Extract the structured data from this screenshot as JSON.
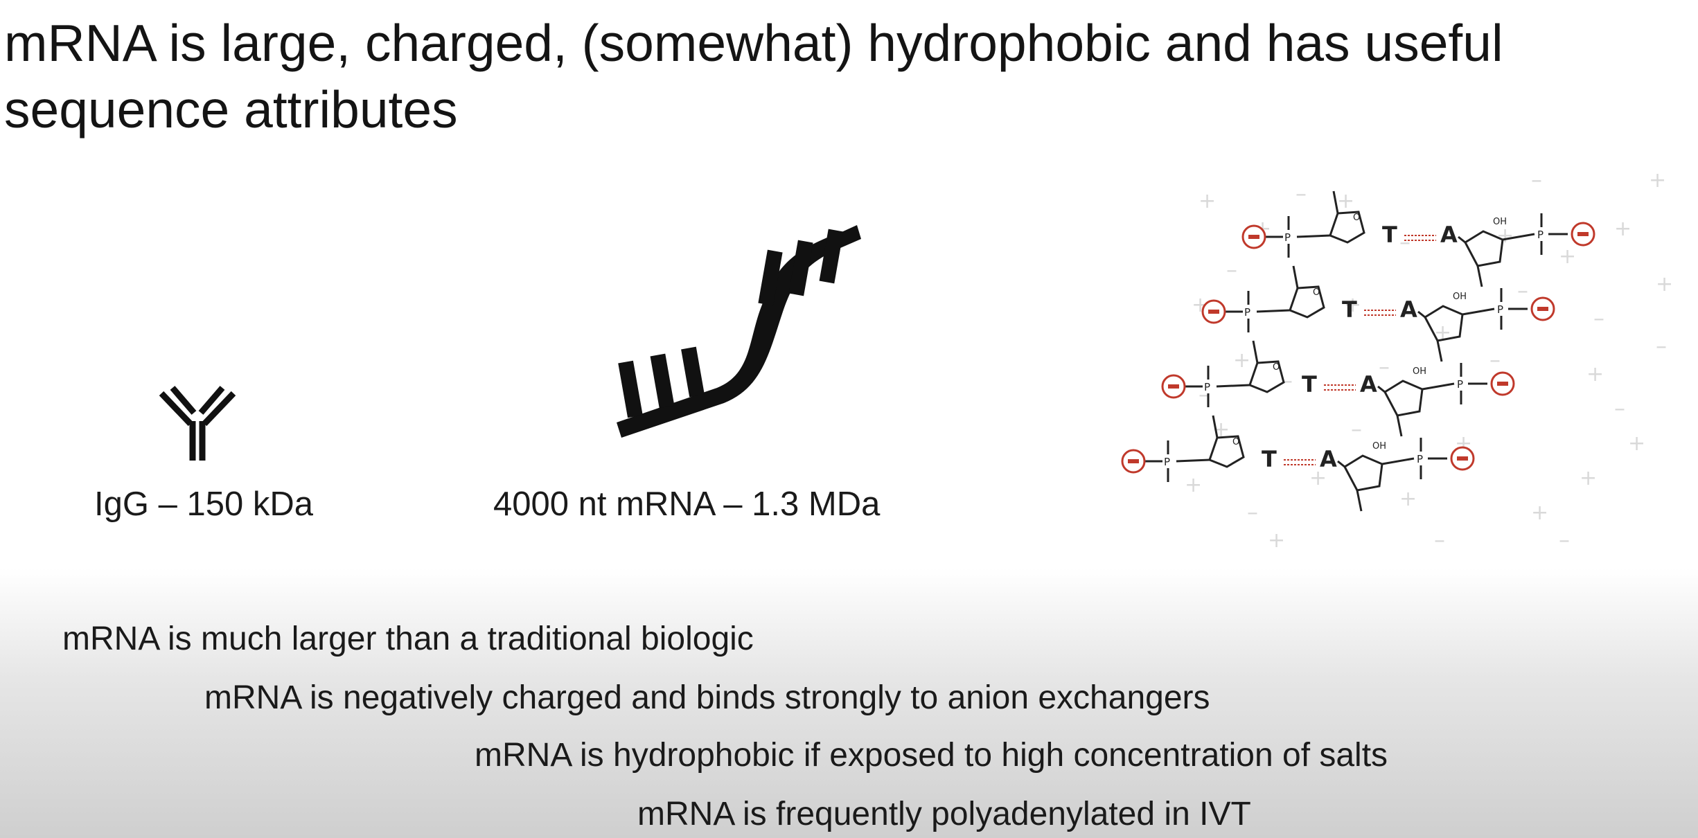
{
  "slide": {
    "title": "mRNA is large, charged, (somewhat) hydrophobic and has useful sequence attributes"
  },
  "figures": {
    "igg_caption": "IgG – 150 kDa",
    "mrna_caption": "4000 nt mRNA – 1.3 MDa",
    "structure": {
      "base_pairs": [
        {
          "left": "T",
          "right": "A"
        },
        {
          "left": "T",
          "right": "A"
        },
        {
          "left": "T",
          "right": "A"
        },
        {
          "left": "T",
          "right": "A"
        }
      ],
      "phosphate_symbol": "P",
      "oxygen_symbol": "O",
      "hydroxyl_label": "OH",
      "charge_plus": "+",
      "charge_minus": "–"
    }
  },
  "bullets": [
    "mRNA is much larger than a traditional biologic",
    "mRNA is negatively charged and binds strongly to anion exchangers",
    "mRNA is hydrophobic if exposed to high concentration of salts",
    "mRNA is frequently polyadenylated in IVT"
  ],
  "colors": {
    "text": "#141414",
    "negative_charge": "#c0392b",
    "bond": "#222222",
    "faint_charge": "#d9d9d9"
  }
}
